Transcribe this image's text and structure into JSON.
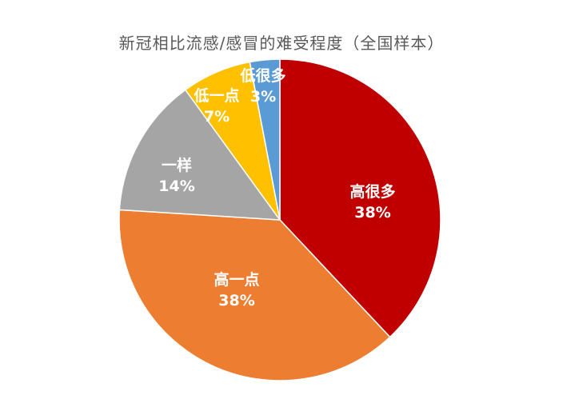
{
  "chart_data": {
    "type": "pie",
    "title": "新冠相比流感/感冒的难受程度（全国样本）",
    "categories": [
      "高很多",
      "高一点",
      "一样",
      "低一点",
      "低很多"
    ],
    "values": [
      38,
      38,
      14,
      7,
      3
    ],
    "labels": [
      "38%",
      "38%",
      "14%",
      "7%",
      "3%"
    ],
    "colors": [
      "#C00000",
      "#ED7D31",
      "#A5A5A5",
      "#FFC000",
      "#5B9BD5"
    ],
    "start_angle_deg": 0,
    "direction": "clockwise"
  }
}
